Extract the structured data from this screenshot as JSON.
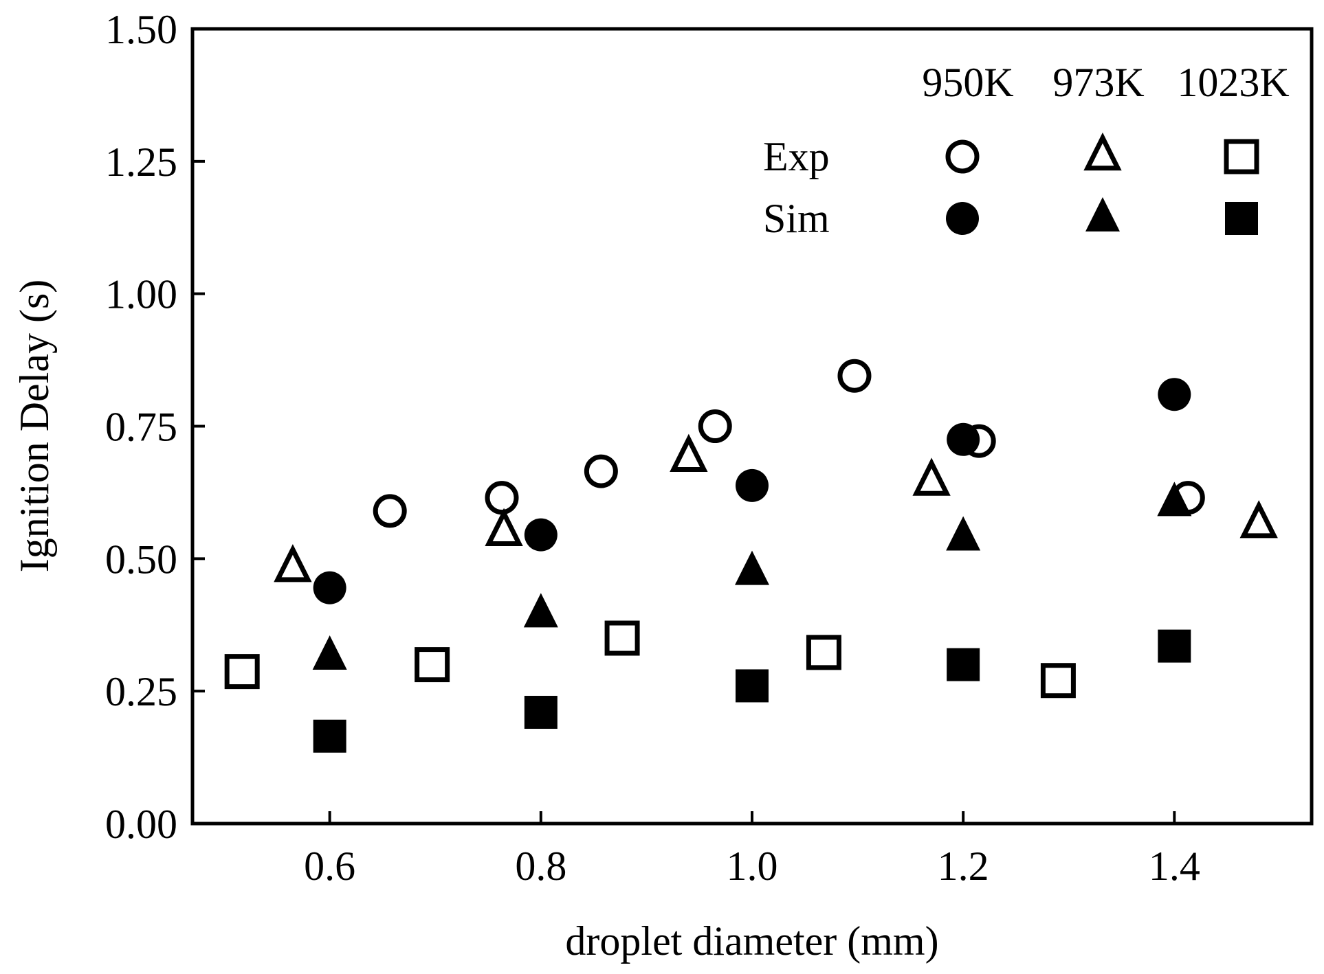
{
  "chart_data": {
    "type": "scatter",
    "title": "",
    "xlabel": "droplet diameter (mm)",
    "ylabel": "Ignition Delay (s)",
    "xlim": [
      0.47,
      1.53
    ],
    "ylim": [
      0.0,
      1.5
    ],
    "xticks": [
      0.6,
      0.8,
      1.0,
      1.2,
      1.4
    ],
    "xtick_labels": [
      "0.6",
      "0.8",
      "1.0",
      "1.2",
      "1.4"
    ],
    "yticks": [
      0.0,
      0.25,
      0.5,
      0.75,
      1.0,
      1.25,
      1.5
    ],
    "ytick_labels": [
      "0.00",
      "0.25",
      "0.50",
      "0.75",
      "1.00",
      "1.25",
      "1.50"
    ],
    "grid": false,
    "legend": {
      "position": "top-right",
      "columns": [
        "950K",
        "973K",
        "1023K"
      ],
      "rows": [
        "Exp",
        "Sim"
      ]
    },
    "series": [
      {
        "temp": "950K",
        "kind": "Exp",
        "marker": "circle",
        "filled": false,
        "points": [
          [
            0.657,
            0.59
          ],
          [
            0.763,
            0.615
          ],
          [
            0.857,
            0.665
          ],
          [
            0.965,
            0.75
          ],
          [
            1.097,
            0.845
          ],
          [
            1.215,
            0.722
          ],
          [
            1.413,
            0.615
          ]
        ]
      },
      {
        "temp": "950K",
        "kind": "Sim",
        "marker": "circle",
        "filled": true,
        "points": [
          [
            0.6,
            0.445
          ],
          [
            0.8,
            0.545
          ],
          [
            1.0,
            0.638
          ],
          [
            1.2,
            0.725
          ],
          [
            1.4,
            0.81
          ]
        ]
      },
      {
        "temp": "973K",
        "kind": "Exp",
        "marker": "triangle",
        "filled": false,
        "points": [
          [
            0.565,
            0.482
          ],
          [
            0.765,
            0.55
          ],
          [
            0.94,
            0.69
          ],
          [
            1.17,
            0.645
          ],
          [
            1.48,
            0.565
          ]
        ]
      },
      {
        "temp": "973K",
        "kind": "Sim",
        "marker": "triangle",
        "filled": true,
        "points": [
          [
            0.6,
            0.315
          ],
          [
            0.8,
            0.395
          ],
          [
            1.0,
            0.475
          ],
          [
            1.2,
            0.54
          ],
          [
            1.4,
            0.605
          ]
        ]
      },
      {
        "temp": "1023K",
        "kind": "Exp",
        "marker": "square",
        "filled": false,
        "points": [
          [
            0.517,
            0.287
          ],
          [
            0.697,
            0.3
          ],
          [
            0.877,
            0.35
          ],
          [
            1.068,
            0.323
          ],
          [
            1.29,
            0.27
          ]
        ]
      },
      {
        "temp": "1023K",
        "kind": "Sim",
        "marker": "square",
        "filled": true,
        "points": [
          [
            0.6,
            0.165
          ],
          [
            0.8,
            0.21
          ],
          [
            1.0,
            0.26
          ],
          [
            1.2,
            0.3
          ],
          [
            1.4,
            0.335
          ]
        ]
      }
    ]
  }
}
